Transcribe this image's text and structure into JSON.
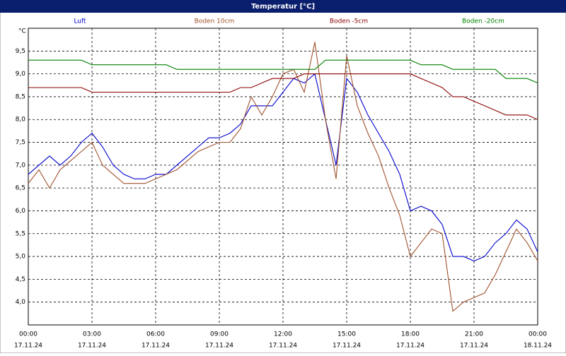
{
  "chart_data": {
    "type": "line",
    "title": "Temperatur [°C]",
    "y_unit": "°C",
    "x": [
      0,
      0.5,
      1,
      1.5,
      2,
      2.5,
      3,
      3.5,
      4,
      4.5,
      5,
      5.5,
      6,
      6.5,
      7,
      7.5,
      8,
      8.5,
      9,
      9.5,
      10,
      10.5,
      11,
      11.5,
      12,
      12.5,
      13,
      13.5,
      14,
      14.5,
      15,
      15.5,
      16,
      16.5,
      17,
      17.5,
      18,
      18.5,
      19,
      19.5,
      20,
      20.5,
      21,
      21.5,
      22,
      22.5,
      23,
      23.5,
      24
    ],
    "series": [
      {
        "name": "Luft",
        "color": "#0000cc",
        "values": [
          6.8,
          7.0,
          7.2,
          7.0,
          7.2,
          7.5,
          7.7,
          7.4,
          7.0,
          6.8,
          6.7,
          6.7,
          6.8,
          6.8,
          7.0,
          7.2,
          7.4,
          7.6,
          7.6,
          7.7,
          7.9,
          8.3,
          8.3,
          8.3,
          8.6,
          8.9,
          8.8,
          9.0,
          8.0,
          7.0,
          8.9,
          8.6,
          8.1,
          7.7,
          7.3,
          6.8,
          6.0,
          6.1,
          6.0,
          5.7,
          5.0,
          5.0,
          4.9,
          5.0,
          5.3,
          5.5,
          5.8,
          5.6,
          5.1
        ]
      },
      {
        "name": "Boden 10cm",
        "color": "#a0522d",
        "values": [
          6.6,
          6.9,
          6.5,
          6.9,
          7.1,
          7.3,
          7.5,
          7.0,
          6.8,
          6.6,
          6.6,
          6.6,
          6.7,
          6.8,
          6.9,
          7.1,
          7.3,
          7.4,
          7.5,
          7.5,
          7.8,
          8.5,
          8.1,
          8.5,
          9.0,
          9.1,
          8.6,
          9.7,
          8.0,
          6.7,
          9.4,
          8.3,
          7.7,
          7.2,
          6.5,
          5.9,
          5.0,
          5.3,
          5.6,
          5.5,
          3.8,
          4.0,
          4.1,
          4.2,
          4.6,
          5.1,
          5.6,
          5.3,
          4.9
        ]
      },
      {
        "name": "Boden -5cm",
        "color": "#8b0000",
        "values": [
          8.7,
          8.7,
          8.7,
          8.7,
          8.7,
          8.7,
          8.6,
          8.6,
          8.6,
          8.6,
          8.6,
          8.6,
          8.6,
          8.6,
          8.6,
          8.6,
          8.6,
          8.6,
          8.6,
          8.6,
          8.7,
          8.7,
          8.8,
          8.9,
          8.9,
          8.9,
          9.0,
          9.0,
          9.0,
          9.0,
          9.0,
          9.0,
          9.0,
          9.0,
          9.0,
          9.0,
          9.0,
          8.9,
          8.8,
          8.7,
          8.5,
          8.5,
          8.4,
          8.3,
          8.2,
          8.1,
          8.1,
          8.1,
          8.0
        ]
      },
      {
        "name": "Boden -20cm",
        "color": "#008000",
        "values": [
          9.3,
          9.3,
          9.3,
          9.3,
          9.3,
          9.3,
          9.2,
          9.2,
          9.2,
          9.2,
          9.2,
          9.2,
          9.2,
          9.2,
          9.1,
          9.1,
          9.1,
          9.1,
          9.1,
          9.1,
          9.1,
          9.1,
          9.1,
          9.1,
          9.1,
          9.1,
          9.1,
          9.1,
          9.3,
          9.3,
          9.3,
          9.3,
          9.3,
          9.3,
          9.3,
          9.3,
          9.3,
          9.2,
          9.2,
          9.2,
          9.1,
          9.1,
          9.1,
          9.1,
          9.1,
          8.9,
          8.9,
          8.9,
          8.8
        ]
      }
    ],
    "xlim": [
      0,
      24
    ],
    "xticks": [
      {
        "value": 0,
        "label": "00:00",
        "date": "17.11.24"
      },
      {
        "value": 3,
        "label": "03:00",
        "date": "17.11.24"
      },
      {
        "value": 6,
        "label": "06:00",
        "date": "17.11.24"
      },
      {
        "value": 9,
        "label": "09:00",
        "date": "17.11.24"
      },
      {
        "value": 12,
        "label": "12:00",
        "date": "17.11.24"
      },
      {
        "value": 15,
        "label": "15:00",
        "date": "17.11.24"
      },
      {
        "value": 18,
        "label": "18:00",
        "date": "17.11.24"
      },
      {
        "value": 21,
        "label": "21:00",
        "date": "17.11.24"
      },
      {
        "value": 24,
        "label": "00:00",
        "date": "18.11.24"
      }
    ],
    "ylim": [
      3.5,
      10
    ],
    "yticks": [
      {
        "value": 4,
        "label": "4,0"
      },
      {
        "value": 4.5,
        "label": "4,5"
      },
      {
        "value": 5,
        "label": "5,0"
      },
      {
        "value": 5.5,
        "label": "5,5"
      },
      {
        "value": 6,
        "label": "6,0"
      },
      {
        "value": 6.5,
        "label": "6,5"
      },
      {
        "value": 7,
        "label": "7,0"
      },
      {
        "value": 7.5,
        "label": "7,5"
      },
      {
        "value": 8,
        "label": "8,0"
      },
      {
        "value": 8.5,
        "label": "8,5"
      },
      {
        "value": 9,
        "label": "9,0"
      },
      {
        "value": 9.5,
        "label": "9,5"
      }
    ],
    "grid": true
  }
}
